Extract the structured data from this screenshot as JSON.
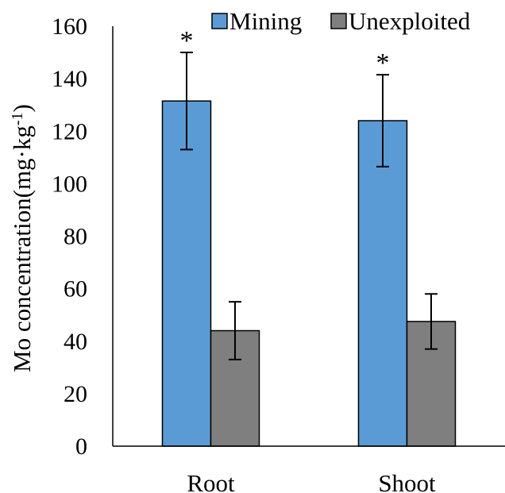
{
  "chart_data": {
    "type": "bar",
    "categories": [
      "Root",
      "Shoot"
    ],
    "series": [
      {
        "name": "Mining",
        "color": "#5b9bd5",
        "values": [
          131.5,
          124
        ],
        "errors": [
          18.5,
          17.5
        ],
        "significance": [
          "*",
          "*"
        ]
      },
      {
        "name": "Unexploited",
        "color": "#7f7f7f",
        "values": [
          44,
          47.5
        ],
        "errors": [
          11,
          10.5
        ],
        "significance": [
          "",
          ""
        ]
      }
    ],
    "ylabel_main": "Mo concentration(mg·kg",
    "ylabel_sup": "-1",
    "ylabel_end": ")",
    "ylim": [
      0,
      160
    ],
    "yticks": [
      0,
      20,
      40,
      60,
      80,
      100,
      120,
      140,
      160
    ],
    "grid": false,
    "legend_position": "top-right"
  }
}
